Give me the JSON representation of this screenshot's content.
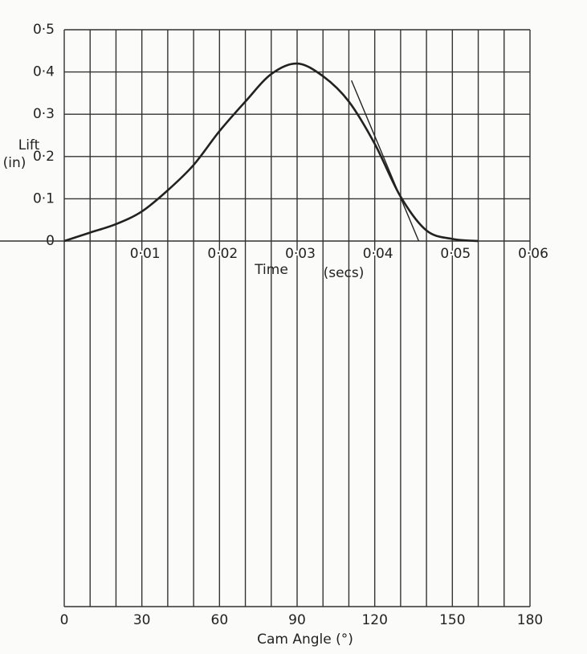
{
  "chart_data": {
    "type": "line",
    "ylabel": "Lift",
    "yunit": "(in)",
    "xlabel": "Cam Angle (°)",
    "x2label": "Time",
    "x2unit": "(secs)",
    "xlim": [
      0,
      180
    ],
    "xticks": [
      0,
      30,
      60,
      90,
      120,
      150,
      180
    ],
    "xgrid": [
      0,
      10,
      20,
      30,
      40,
      50,
      60,
      70,
      80,
      90,
      100,
      110,
      120,
      130,
      140,
      150,
      160,
      170,
      180
    ],
    "x2lim": [
      0,
      0.06
    ],
    "x2ticks": [
      {
        "value": 0.01,
        "label": "0·01"
      },
      {
        "value": 0.02,
        "label": "0·02"
      },
      {
        "value": 0.03,
        "label": "0·03"
      },
      {
        "value": 0.04,
        "label": "0·04"
      },
      {
        "value": 0.05,
        "label": "0·05"
      },
      {
        "value": 0.06,
        "label": "0·06"
      }
    ],
    "ylim": [
      0,
      0.5
    ],
    "yticks": [
      {
        "value": 0,
        "label": "0"
      },
      {
        "value": 0.1,
        "label": "0·1"
      },
      {
        "value": 0.2,
        "label": "0·2"
      },
      {
        "value": 0.3,
        "label": "0·3"
      },
      {
        "value": 0.4,
        "label": "0·4"
      },
      {
        "value": 0.5,
        "label": "0·5"
      }
    ],
    "grid": true,
    "series": [
      {
        "color": "#222",
        "x": [
          0,
          10,
          20,
          30,
          40,
          50,
          60,
          70,
          80,
          90,
          100,
          110,
          120,
          130,
          140,
          150,
          160
        ],
        "values": [
          0,
          0.02,
          0.04,
          0.07,
          0.12,
          0.18,
          0.26,
          0.33,
          0.395,
          0.42,
          0.39,
          0.33,
          0.23,
          0.105,
          0.025,
          0.005,
          0
        ]
      },
      {
        "color": "#222",
        "x": [
          111,
          137
        ],
        "values": [
          0.38,
          0
        ]
      }
    ]
  }
}
